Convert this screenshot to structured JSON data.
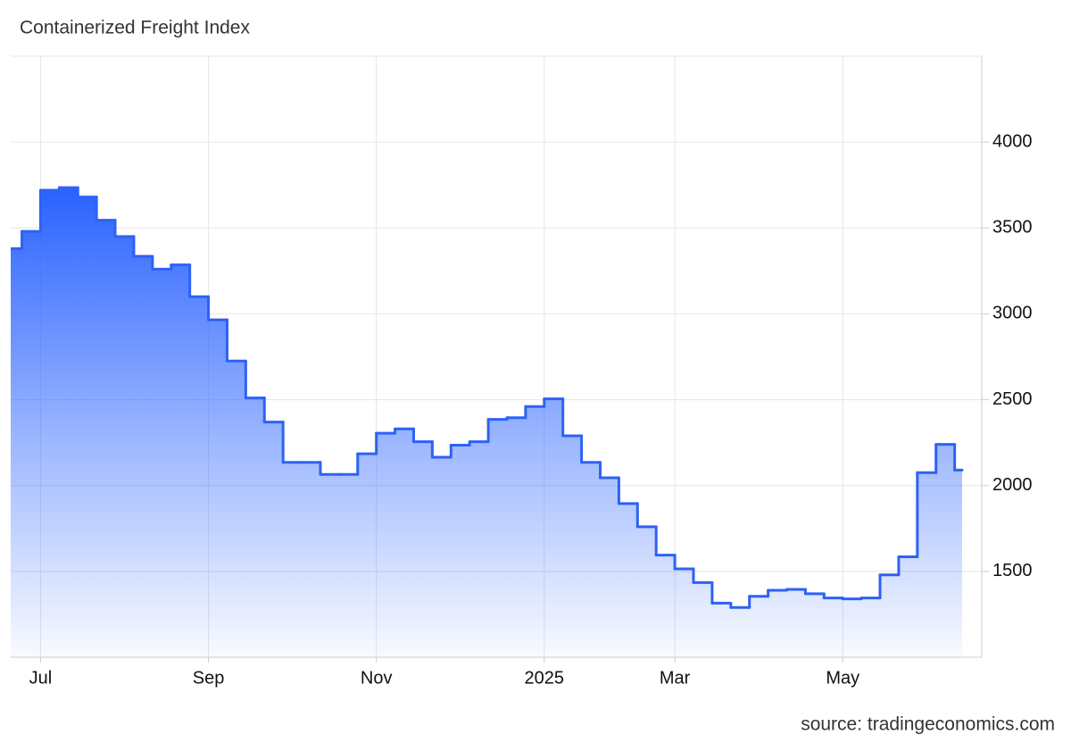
{
  "chart_data": {
    "type": "step-area",
    "title": "Containerized Freight Index",
    "source": "source: tradingeconomics.com",
    "color": "#2d62f5",
    "grid": true,
    "categories": [
      null,
      null,
      "Jul",
      null,
      null,
      null,
      null,
      null,
      null,
      null,
      null,
      "Sep",
      null,
      null,
      null,
      null,
      null,
      null,
      null,
      null,
      "Nov",
      null,
      null,
      null,
      null,
      null,
      null,
      null,
      null,
      "2025",
      null,
      null,
      null,
      null,
      null,
      null,
      "Mar",
      null,
      null,
      null,
      null,
      null,
      null,
      null,
      null,
      "May",
      null,
      null,
      null,
      null,
      null,
      null
    ],
    "values": [
      3380,
      3480,
      3720,
      3735,
      3680,
      3545,
      3450,
      3335,
      3260,
      3285,
      3100,
      2965,
      2725,
      2510,
      2370,
      2135,
      2135,
      2065,
      2065,
      2185,
      2305,
      2330,
      2255,
      2165,
      2235,
      2255,
      2385,
      2395,
      2460,
      2505,
      2290,
      2135,
      2045,
      1895,
      1760,
      1595,
      1515,
      1435,
      1315,
      1290,
      1355,
      1390,
      1395,
      1370,
      1345,
      1340,
      1345,
      1480,
      1585,
      2075,
      2240,
      2090
    ],
    "ylim": [
      1000,
      4500
    ],
    "yticks": [
      1500,
      2000,
      2500,
      3000,
      3500,
      4000
    ]
  }
}
